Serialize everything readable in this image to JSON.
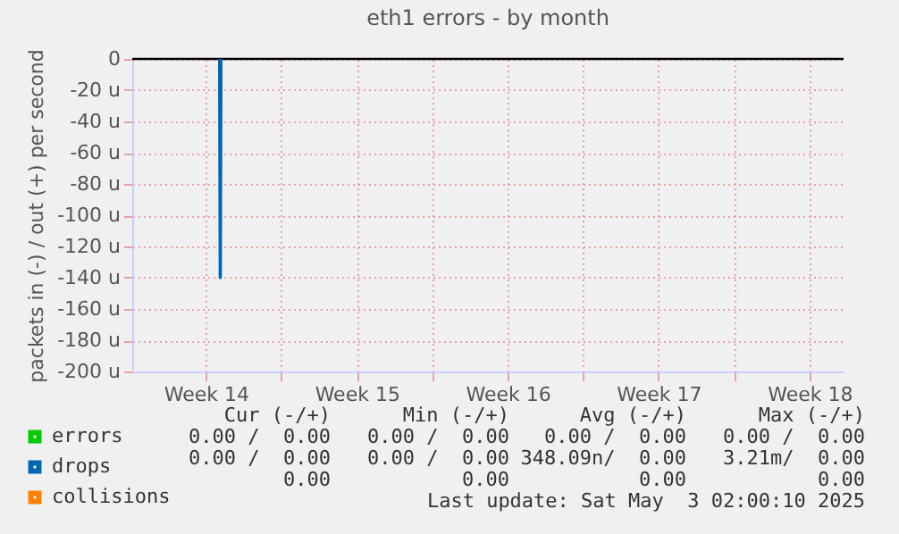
{
  "chart_data": {
    "type": "line",
    "title": "eth1 errors - by month",
    "ylabel": "packets in (-) / out (+) per second",
    "x": [
      "2025-04-04T03:00",
      "2025-04-04T03:40",
      "2025-04-04T04:20",
      "2025-04-04T05:00"
    ],
    "series": [
      {
        "name": "errors",
        "color": "#00cc00",
        "values": [
          null,
          null,
          null,
          null
        ]
      },
      {
        "name": "drops",
        "color": "#0066b3",
        "values": [
          0,
          -140,
          -140,
          0
        ]
      },
      {
        "name": "collisions",
        "color": "#ff8000",
        "values": [
          null,
          null,
          null,
          null
        ]
      }
    ],
    "xlim": [
      "2025-03-31T02:00",
      "2025-05-03T02:00"
    ],
    "xticks": [
      {
        "value": "2025-04-03T12:00",
        "label": "Week 14"
      },
      {
        "value": "2025-04-07",
        "label": null
      },
      {
        "value": "2025-04-10T12:00",
        "label": "Week 15"
      },
      {
        "value": "2025-04-14",
        "label": null
      },
      {
        "value": "2025-04-17T12:00",
        "label": "Week 16"
      },
      {
        "value": "2025-04-21",
        "label": null
      },
      {
        "value": "2025-04-24T12:00",
        "label": "Week 17"
      },
      {
        "value": "2025-04-28",
        "label": null
      },
      {
        "value": "2025-05-01T12:00",
        "label": "Week 18"
      }
    ],
    "ylim": [
      -200,
      0
    ],
    "yticks": [
      {
        "value": -200,
        "label": "-200 u"
      },
      {
        "value": -180,
        "label": "-180 u"
      },
      {
        "value": -160,
        "label": "-160 u"
      },
      {
        "value": -140,
        "label": "-140 u"
      },
      {
        "value": -120,
        "label": "-120 u"
      },
      {
        "value": -100,
        "label": "-100 u"
      },
      {
        "value": -80,
        "label": "-80 u"
      },
      {
        "value": -60,
        "label": "-60 u"
      },
      {
        "value": -40,
        "label": "-40 u"
      },
      {
        "value": -20,
        "label": "-20 u"
      },
      0
    ],
    "ref_lines": [
      {
        "axis": "y",
        "value": 0,
        "color": "#000000"
      }
    ],
    "grid": true,
    "legend": "bottom left",
    "marker": "none",
    "annotations": [
      "Cur (-/+)",
      "Min (-/+)",
      "Avg (-/+)",
      "Max (-/+)",
      "0.00 /  0.00",
      "0.00 /  0.00",
      "0.00 /  0.00",
      "0.00 /  0.00",
      "0.00 /  0.00",
      "0.00 /  0.00",
      "348.09n/  0.00",
      "3.21m/  0.00",
      "0.00",
      "0.00",
      "0.00",
      "0.00",
      "Last update: Sat May  3 02:00:10 2025"
    ]
  }
}
